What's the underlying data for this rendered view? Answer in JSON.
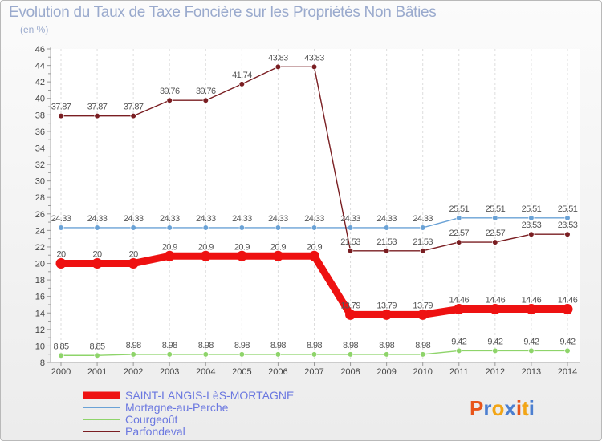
{
  "title": "Evolution du Taux de Taxe Foncière sur les Propriétés Non Bâties",
  "subtitle": "(en %)",
  "logo": {
    "text": "Proxiti",
    "colors": [
      "#e8551a",
      "#4c7fd0",
      "#f2a516",
      "#4c7fd0",
      "#e8551a",
      "#f2a516",
      "#4c7fd0"
    ]
  },
  "chart_data": {
    "type": "line",
    "title": "Evolution du Taux de Taxe Foncière sur les Propriétés Non Bâties",
    "ylabel": "(en %)",
    "xlabel": "",
    "ylim": [
      8,
      46
    ],
    "ytick_step": 2,
    "grid": "vertical dashed",
    "categories": [
      "2000",
      "2001",
      "2002",
      "2003",
      "2004",
      "2005",
      "2006",
      "2007",
      "2008",
      "2009",
      "2010",
      "2011",
      "2012",
      "2013",
      "2014"
    ],
    "series": [
      {
        "name": "SAINT-LANGIS-LèS-MORTAGNE",
        "color": "#ee1111",
        "thick": true,
        "values": [
          20,
          20,
          20,
          20.9,
          20.9,
          20.9,
          20.9,
          20.9,
          13.79,
          13.79,
          13.79,
          14.46,
          14.46,
          14.46,
          14.46
        ],
        "labels": [
          "20",
          "20",
          "20",
          "20.9",
          "20.9",
          "20.9",
          "20.9",
          "20.9",
          "13.79",
          "13.79",
          "13.79",
          "14.46",
          "14.46",
          "14.46",
          "14.46"
        ]
      },
      {
        "name": "Mortagne-au-Perche",
        "color": "#6aa2d6",
        "thick": false,
        "values": [
          24.33,
          24.33,
          24.33,
          24.33,
          24.33,
          24.33,
          24.33,
          24.33,
          24.33,
          24.33,
          24.33,
          25.51,
          25.51,
          25.51,
          25.51
        ],
        "labels": [
          "24.33",
          "24.33",
          "24.33",
          "24.33",
          "24.33",
          "24.33",
          "24.33",
          "24.33",
          "24.33",
          "24.33",
          "24.33",
          "25.51",
          "25.51",
          "25.51",
          "25.51"
        ]
      },
      {
        "name": "Courgeoût",
        "color": "#8ed46a",
        "thick": false,
        "values": [
          8.85,
          8.85,
          8.98,
          8.98,
          8.98,
          8.98,
          8.98,
          8.98,
          8.98,
          8.98,
          8.98,
          9.42,
          9.42,
          9.42,
          9.42
        ],
        "labels": [
          "8.85",
          "8.85",
          "8.98",
          "8.98",
          "8.98",
          "8.98",
          "8.98",
          "8.98",
          "8.98",
          "8.98",
          "8.98",
          "9.42",
          "9.42",
          "9.42",
          "9.42"
        ]
      },
      {
        "name": "Parfondeval",
        "color": "#7a1e22",
        "thick": false,
        "values": [
          37.87,
          37.87,
          37.87,
          39.76,
          39.76,
          41.74,
          43.83,
          43.83,
          21.53,
          21.53,
          21.53,
          22.57,
          22.57,
          23.53,
          23.53
        ],
        "labels": [
          "37.87",
          "37.87",
          "37.87",
          "39.76",
          "39.76",
          "41.74",
          "43.83",
          "43.83",
          "21.53",
          "21.53",
          "21.53",
          "22.57",
          "22.57",
          "23.53",
          "23.53"
        ]
      }
    ]
  }
}
